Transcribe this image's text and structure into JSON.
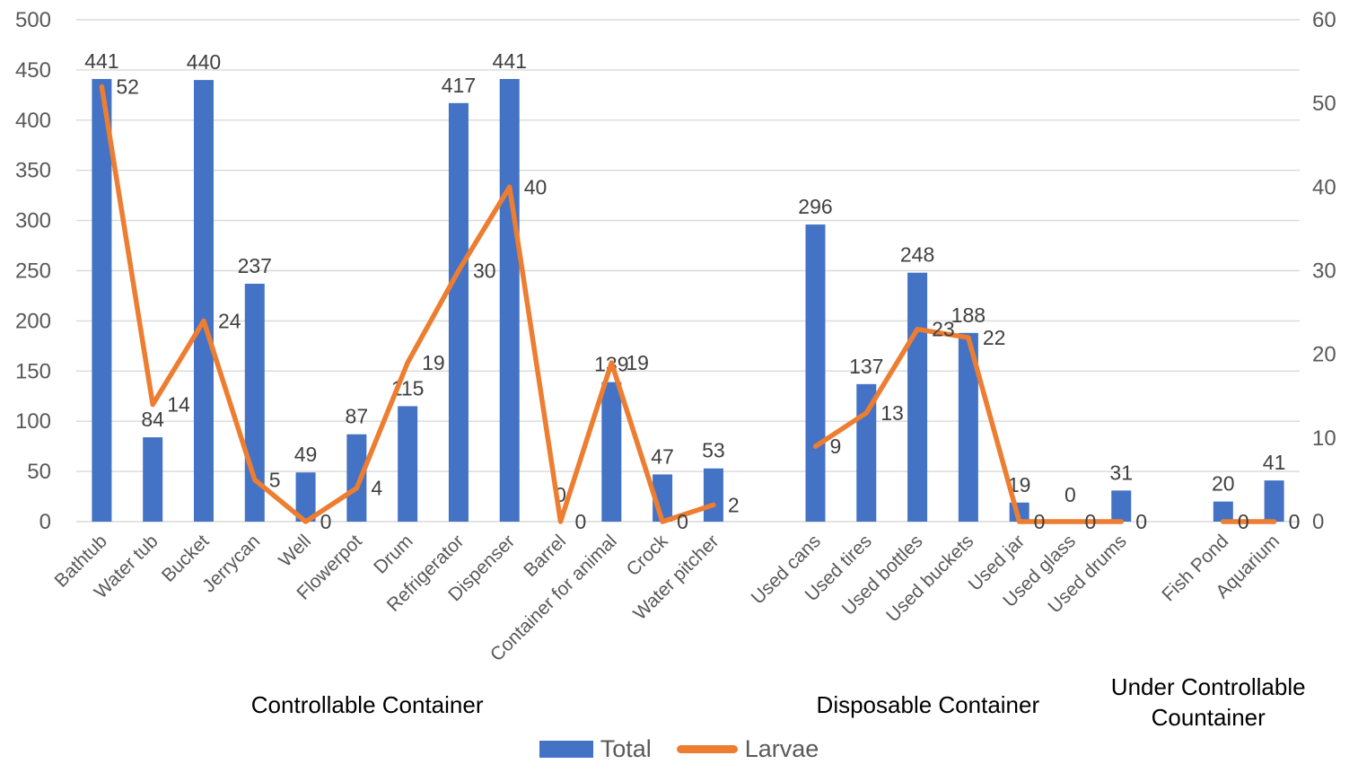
{
  "colors": {
    "bar": "#4472C4",
    "line": "#ED7D31",
    "gridline": "#D9D9D9",
    "axis_text": "#595959",
    "label_text": "#404040",
    "group_label_text": "#000000"
  },
  "legend": [
    {
      "label": "Total",
      "marker": "bar",
      "color": "#4472C4"
    },
    {
      "label": "Larvae",
      "marker": "line",
      "color": "#ED7D31"
    }
  ],
  "chart_data": {
    "type": "bar",
    "combo": "bar+line",
    "title": "",
    "legend_position": "bottom",
    "grid": true,
    "left_axis": {
      "series": "Total",
      "min": 0,
      "max": 500,
      "step": 50,
      "ticks": [
        "0",
        "50",
        "100",
        "150",
        "200",
        "250",
        "300",
        "350",
        "400",
        "450",
        "500"
      ]
    },
    "right_axis": {
      "series": "Larvae",
      "min": 0,
      "max": 60,
      "step": 10,
      "ticks": [
        "0",
        "10",
        "20",
        "30",
        "40",
        "50",
        "60"
      ]
    },
    "series_names": [
      "Total",
      "Larvae"
    ],
    "groups": [
      {
        "label": "Controllable Container",
        "label_lines": [
          "Controllable Container"
        ],
        "items": [
          {
            "name": "Bathtub",
            "total": 441,
            "larvae": 52
          },
          {
            "name": "Water tub",
            "total": 84,
            "larvae": 14
          },
          {
            "name": "Bucket",
            "total": 440,
            "larvae": 24
          },
          {
            "name": "Jerrycan",
            "total": 237,
            "larvae": 5
          },
          {
            "name": "Well",
            "total": 49,
            "larvae": 0
          },
          {
            "name": "Flowerpot",
            "total": 87,
            "larvae": 4
          },
          {
            "name": "Drum",
            "total": 115,
            "larvae": 19
          },
          {
            "name": "Refrigerator",
            "total": 417,
            "larvae": 30
          },
          {
            "name": "Dispenser",
            "total": 441,
            "larvae": 40
          },
          {
            "name": "Barrel",
            "total": 0,
            "larvae": 0
          },
          {
            "name": "Container for animal",
            "total": 139,
            "larvae": 19
          },
          {
            "name": "Crock",
            "total": 47,
            "larvae": 0
          },
          {
            "name": "Water pitcher",
            "total": 53,
            "larvae": 2
          }
        ]
      },
      {
        "label": "Disposable Container",
        "label_lines": [
          "Disposable Container"
        ],
        "items": [
          {
            "name": "Used cans",
            "total": 296,
            "larvae": 9
          },
          {
            "name": "Used tires",
            "total": 137,
            "larvae": 13
          },
          {
            "name": "Used bottles",
            "total": 248,
            "larvae": 23
          },
          {
            "name": "Used buckets",
            "total": 188,
            "larvae": 22
          },
          {
            "name": "Used jar",
            "total": 19,
            "larvae": 0
          },
          {
            "name": "Used glass",
            "total": 0,
            "larvae": 0
          },
          {
            "name": "Used drums",
            "total": 31,
            "larvae": 0
          }
        ]
      },
      {
        "label": "Under Controllable Countainer",
        "label_lines": [
          "Under Controllable",
          "Countainer"
        ],
        "items": [
          {
            "name": "Fish Pond",
            "total": 20,
            "larvae": 0
          },
          {
            "name": "Aquarium",
            "total": 41,
            "larvae": 0
          }
        ]
      }
    ]
  }
}
